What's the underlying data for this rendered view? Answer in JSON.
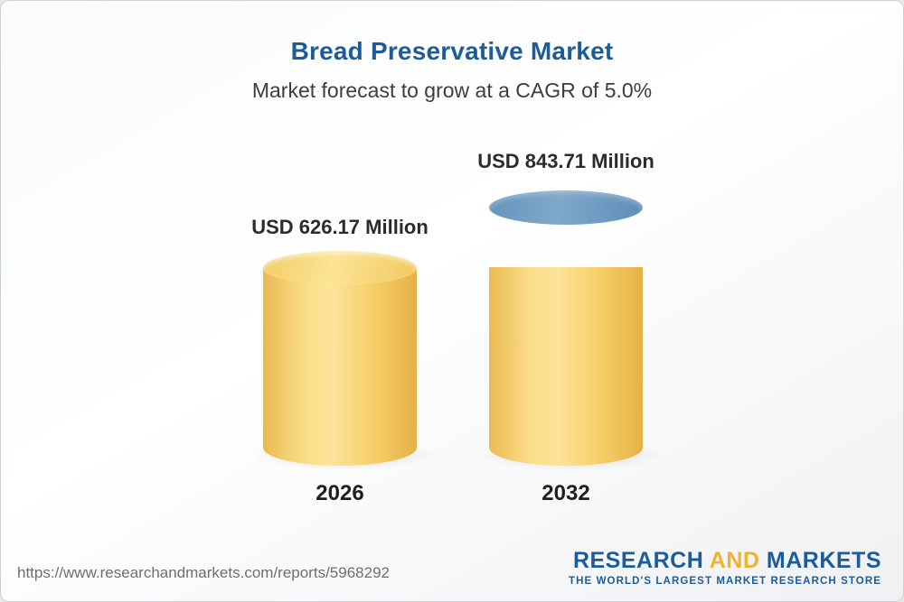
{
  "title": "Bread Preservative Market",
  "subtitle": "Market forecast to grow at a CAGR of 5.0%",
  "chart_data": {
    "type": "bar",
    "bar_style": "3d-cylinder",
    "categories": [
      "2026",
      "2032"
    ],
    "values": [
      626.17,
      843.71
    ],
    "unit": "USD Million",
    "value_labels": [
      "USD 626.17 Million",
      "USD 843.71 Million"
    ],
    "cagr_percent": 5.0,
    "ylim": [
      0,
      900
    ],
    "legend": "none",
    "grid": "off",
    "colors": {
      "base_bar": "#f2c95c",
      "growth_segment": "#5e92ba",
      "title_text": "#1d5c9a",
      "label_text": "#2b2b2b"
    },
    "notes": "2032 cylinder shows yellow base equal to 2026 value with blue top segment representing growth from 626.17 to 843.71"
  },
  "footer": {
    "url": "https://www.researchandmarkets.com/reports/5968292",
    "logo": {
      "research": "RESEARCH",
      "and": " AND ",
      "markets": "MARKETS",
      "tagline": "THE WORLD'S LARGEST MARKET RESEARCH STORE"
    }
  }
}
